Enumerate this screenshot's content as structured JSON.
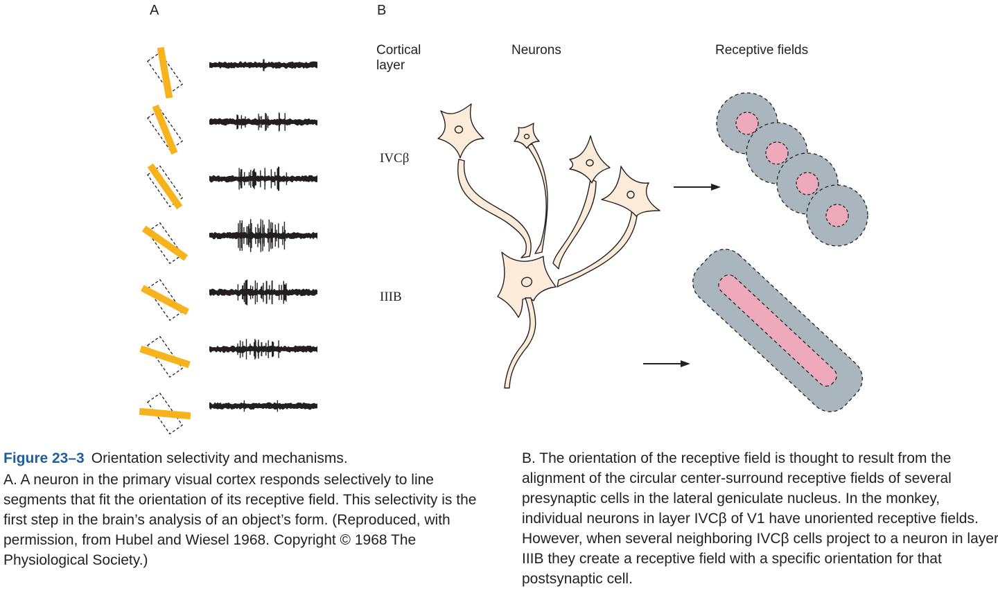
{
  "panel_a": {
    "label": "A",
    "stimulus_angles_deg": [
      80,
      68,
      55,
      35,
      28,
      18,
      5
    ],
    "spike_activity": [
      0.05,
      0.35,
      0.6,
      1.0,
      0.7,
      0.45,
      0.05
    ]
  },
  "panel_b": {
    "label": "B",
    "header_layer": "Cortical\nlayer",
    "header_neurons": "Neurons",
    "header_fields": "Receptive fields",
    "layer_upper": "IVCβ",
    "layer_lower": "IIIB"
  },
  "caption": {
    "figure_number": "Figure 23–3",
    "figure_title": "Orientation selectivity and mechanisms.",
    "text_a": "A. A neuron in the primary visual cortex responds selectively to line segments that fit the orientation of its receptive field. This selectivity is the first step in the brain’s analysis of an object’s form. (Reproduced, with permission, from Hubel and Wiesel 1968. Copyright © 1968 The Physiological Society.)",
    "text_b": "B. The orientation of the receptive field is thought to result from the alignment of the circular center-surround receptive fields of several presynaptic cells in the lateral geniculate nucleus. In the monkey, individual neurons in layer IVCβ of V1 have unoriented receptive fields. However, when several neighboring IVCβ cells project to a neuron in layer IIIB they create a receptive field with a specific orientation for that postsynaptic cell."
  },
  "colors": {
    "stimulus_bar": "#f7b31e",
    "neuron_fill": "#fbebd8",
    "field_surround": "#a9b6bd",
    "field_center": "#eeaabb",
    "figure_number": "#1f5fa0"
  }
}
